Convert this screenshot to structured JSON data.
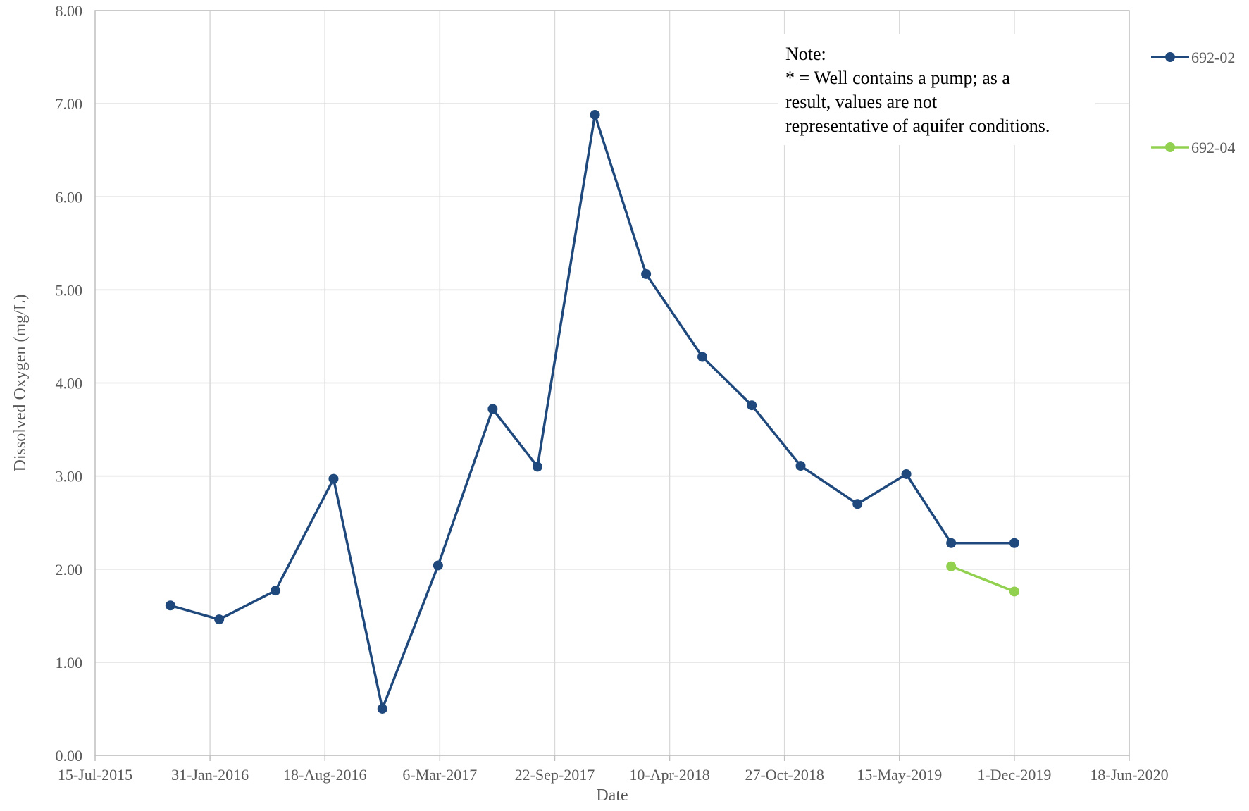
{
  "chart_data": {
    "type": "line",
    "xlabel": "Date",
    "ylabel": "Dissolved Oxygen (mg/L)",
    "x_ticks": [
      "15-Jul-2015",
      "31-Jan-2016",
      "18-Aug-2016",
      "6-Mar-2017",
      "22-Sep-2017",
      "10-Apr-2018",
      "27-Oct-2018",
      "15-May-2019",
      "1-Dec-2019",
      "18-Jun-2020"
    ],
    "xlim": [
      "2015-07-15",
      "2020-06-18"
    ],
    "ylim": [
      0,
      8
    ],
    "y_ticks": [
      "0.00",
      "1.00",
      "2.00",
      "3.00",
      "4.00",
      "5.00",
      "6.00",
      "7.00",
      "8.00"
    ],
    "grid": true,
    "legend_position": "right",
    "note_lines": [
      "Note:",
      "* = Well contains a pump; as a",
      "result, values are not",
      "representative of aquifer conditions."
    ],
    "series": [
      {
        "name": "692-02",
        "color": "#1F497D",
        "points": [
          {
            "x": "2015-11-23",
            "y": 1.61
          },
          {
            "x": "2016-02-16",
            "y": 1.46
          },
          {
            "x": "2016-05-24",
            "y": 1.77
          },
          {
            "x": "2016-09-02",
            "y": 2.97
          },
          {
            "x": "2016-11-26",
            "y": 0.5
          },
          {
            "x": "2017-03-03",
            "y": 2.04
          },
          {
            "x": "2017-06-06",
            "y": 3.72
          },
          {
            "x": "2017-08-23",
            "y": 3.1
          },
          {
            "x": "2017-12-01",
            "y": 6.88
          },
          {
            "x": "2018-02-28",
            "y": 5.17
          },
          {
            "x": "2018-06-06",
            "y": 4.28
          },
          {
            "x": "2018-08-31",
            "y": 3.76
          },
          {
            "x": "2018-11-24",
            "y": 3.11
          },
          {
            "x": "2019-03-03",
            "y": 2.7
          },
          {
            "x": "2019-05-27",
            "y": 3.02
          },
          {
            "x": "2019-08-13",
            "y": 2.28
          },
          {
            "x": "2019-12-01",
            "y": 2.28
          }
        ]
      },
      {
        "name": "692-04",
        "color": "#92D050",
        "points": [
          {
            "x": "2019-08-13",
            "y": 2.03
          },
          {
            "x": "2019-12-01",
            "y": 1.76
          }
        ]
      }
    ]
  }
}
